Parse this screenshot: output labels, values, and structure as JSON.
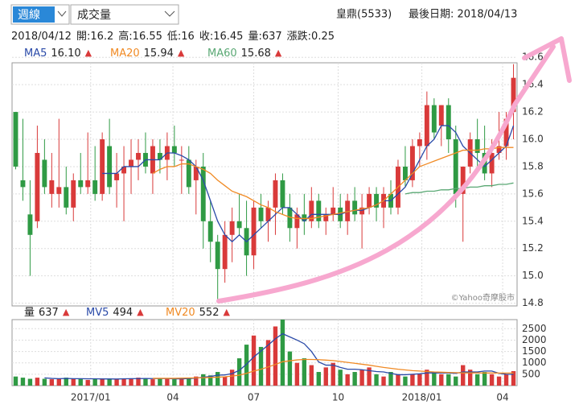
{
  "toolbar": {
    "period": "週線",
    "indicator": "成交量"
  },
  "header": {
    "stock": "皇鼎(5533)",
    "last_date": "最後日期: 2018/04/13"
  },
  "quote": {
    "date": "2018/04/12",
    "items": [
      {
        "label": "開:",
        "value": 16.2
      },
      {
        "label": "高:",
        "value": 16.55
      },
      {
        "label": "低:",
        "value": 16
      },
      {
        "label": "收:",
        "value": 16.45
      },
      {
        "label": "量:",
        "value": 637
      },
      {
        "label": "漲跌:",
        "value": 0.25
      }
    ]
  },
  "watermark": "©Yahoo奇摩股市",
  "chart_data": [
    {
      "type": "candlestick",
      "up_color": "#d93a3a",
      "down_color": "#2f9a44",
      "grid": true,
      "xlim": [
        -0.5,
        69.5
      ],
      "ylim": [
        14.78,
        16.56
      ],
      "yticks": [
        14.8,
        {
          "value": 15.0,
          "label": "15.0"
        },
        15.2,
        15.4,
        15.6,
        15.8,
        {
          "value": 16.0,
          "label": "16.0"
        },
        16.2,
        16.4,
        16.6
      ],
      "ohlc": [
        [
          16.2,
          16.2,
          15.78,
          15.8
        ],
        [
          15.7,
          16.15,
          15.55,
          15.65
        ],
        [
          15.45,
          15.7,
          15.0,
          15.3
        ],
        [
          15.4,
          16.1,
          15.35,
          15.9
        ],
        [
          15.85,
          16.0,
          15.6,
          15.65
        ],
        [
          15.6,
          15.9,
          15.5,
          15.7
        ],
        [
          15.6,
          16.15,
          15.5,
          15.65
        ],
        [
          15.65,
          15.8,
          15.45,
          15.5
        ],
        [
          15.5,
          15.75,
          15.4,
          15.7
        ],
        [
          15.7,
          15.9,
          15.6,
          15.65
        ],
        [
          15.65,
          16.05,
          15.6,
          15.7
        ],
        [
          15.7,
          15.95,
          15.55,
          15.6
        ],
        [
          15.6,
          16.05,
          15.55,
          16.0
        ],
        [
          15.95,
          16.15,
          15.6,
          15.65
        ],
        [
          15.7,
          15.9,
          15.5,
          15.75
        ],
        [
          15.75,
          15.95,
          15.4,
          15.8
        ],
        [
          15.8,
          16.0,
          15.6,
          15.85
        ],
        [
          15.85,
          16.0,
          15.7,
          15.9
        ],
        [
          15.9,
          16.05,
          15.75,
          15.8
        ],
        [
          15.75,
          16.0,
          15.6,
          15.95
        ],
        [
          15.9,
          16.0,
          15.75,
          15.85
        ],
        [
          15.85,
          16.05,
          15.7,
          15.95
        ],
        [
          15.95,
          16.1,
          15.8,
          15.9
        ],
        [
          15.85,
          15.95,
          15.6,
          15.85
        ],
        [
          15.85,
          15.95,
          15.6,
          15.65
        ],
        [
          15.7,
          15.85,
          15.45,
          15.8
        ],
        [
          15.8,
          15.9,
          15.2,
          15.4
        ],
        [
          15.4,
          15.55,
          15.1,
          15.25
        ],
        [
          15.25,
          15.3,
          14.82,
          15.05
        ],
        [
          15.05,
          15.4,
          14.95,
          15.3
        ],
        [
          15.3,
          15.5,
          15.1,
          15.4
        ],
        [
          15.4,
          15.6,
          15.3,
          15.35
        ],
        [
          15.35,
          15.55,
          15.0,
          15.15
        ],
        [
          15.15,
          15.55,
          15.05,
          15.5
        ],
        [
          15.5,
          15.6,
          15.35,
          15.4
        ],
        [
          15.4,
          15.55,
          15.25,
          15.5
        ],
        [
          15.5,
          15.75,
          15.3,
          15.7
        ],
        [
          15.7,
          15.75,
          15.45,
          15.5
        ],
        [
          15.5,
          15.6,
          15.25,
          15.35
        ],
        [
          15.35,
          15.5,
          15.2,
          15.45
        ],
        [
          15.45,
          15.6,
          15.3,
          15.4
        ],
        [
          15.4,
          15.65,
          15.35,
          15.55
        ],
        [
          15.55,
          15.6,
          15.35,
          15.4
        ],
        [
          15.4,
          15.5,
          15.3,
          15.45
        ],
        [
          15.45,
          15.65,
          15.4,
          15.5
        ],
        [
          15.5,
          15.6,
          15.35,
          15.4
        ],
        [
          15.4,
          15.6,
          15.3,
          15.55
        ],
        [
          15.55,
          15.65,
          15.4,
          15.45
        ],
        [
          15.45,
          15.6,
          15.2,
          15.5
        ],
        [
          15.5,
          15.65,
          15.45,
          15.6
        ],
        [
          15.6,
          15.65,
          15.4,
          15.5
        ],
        [
          15.5,
          15.65,
          15.35,
          15.6
        ],
        [
          15.6,
          15.7,
          15.45,
          15.5
        ],
        [
          15.5,
          15.85,
          15.45,
          15.8
        ],
        [
          15.8,
          15.95,
          15.65,
          15.7
        ],
        [
          15.7,
          16.0,
          15.65,
          15.95
        ],
        [
          15.95,
          16.05,
          15.8,
          16.0
        ],
        [
          15.95,
          16.35,
          15.85,
          16.25
        ],
        [
          16.25,
          16.3,
          16.0,
          16.05
        ],
        [
          16.1,
          16.25,
          15.95,
          16.25
        ],
        [
          16.25,
          16.3,
          15.9,
          16.0
        ],
        [
          16.0,
          16.1,
          15.5,
          15.6
        ],
        [
          15.6,
          15.8,
          15.25,
          15.8
        ],
        [
          15.8,
          16.05,
          15.75,
          16.0
        ],
        [
          16.0,
          16.15,
          15.8,
          15.9
        ],
        [
          15.9,
          16.1,
          15.7,
          15.75
        ],
        [
          15.75,
          16.0,
          15.65,
          15.9
        ],
        [
          15.9,
          16.2,
          15.85,
          15.95
        ],
        [
          15.95,
          16.2,
          15.85,
          16.15
        ],
        [
          16.2,
          16.55,
          16.0,
          16.45
        ]
      ],
      "series": [
        {
          "name": "MA5",
          "color": "#2a4aa8",
          "current": "16.10",
          "trend": "▲",
          "values": [
            null,
            null,
            null,
            null,
            null,
            null,
            null,
            null,
            null,
            null,
            null,
            null,
            15.75,
            15.75,
            15.75,
            15.8,
            15.8,
            15.8,
            15.85,
            15.85,
            15.85,
            15.9,
            15.9,
            15.88,
            15.85,
            15.8,
            15.7,
            15.55,
            15.4,
            15.3,
            15.25,
            15.3,
            15.25,
            15.3,
            15.35,
            15.4,
            15.45,
            15.5,
            15.5,
            15.45,
            15.4,
            15.45,
            15.45,
            15.45,
            15.45,
            15.45,
            15.47,
            15.48,
            15.48,
            15.5,
            15.52,
            15.55,
            15.55,
            15.6,
            15.65,
            15.75,
            15.85,
            15.95,
            16.0,
            16.1,
            16.1,
            16.05,
            15.95,
            15.9,
            15.85,
            15.8,
            15.85,
            15.9,
            15.95,
            16.1
          ]
        },
        {
          "name": "MA20",
          "color": "#f08a24",
          "current": "15.94",
          "trend": "▲",
          "values": [
            null,
            null,
            null,
            null,
            null,
            null,
            null,
            null,
            null,
            null,
            null,
            null,
            null,
            null,
            null,
            null,
            null,
            null,
            null,
            15.75,
            15.78,
            15.8,
            15.8,
            15.82,
            15.82,
            15.8,
            15.78,
            15.75,
            15.7,
            15.66,
            15.62,
            15.6,
            15.58,
            15.55,
            15.52,
            15.5,
            15.47,
            15.45,
            15.43,
            15.42,
            15.42,
            15.42,
            15.43,
            15.44,
            15.45,
            15.46,
            15.47,
            15.48,
            15.49,
            15.5,
            15.52,
            15.55,
            15.6,
            15.65,
            15.7,
            15.75,
            15.8,
            15.82,
            15.84,
            15.86,
            15.88,
            15.9,
            15.92,
            15.92,
            15.92,
            15.93,
            15.93,
            15.94,
            15.94,
            15.94
          ]
        },
        {
          "name": "MA60",
          "color": "#5aa874",
          "current": "15.68",
          "trend": "▲",
          "values": [
            null,
            null,
            null,
            null,
            null,
            null,
            null,
            null,
            null,
            null,
            null,
            null,
            null,
            null,
            null,
            null,
            null,
            null,
            null,
            null,
            null,
            null,
            null,
            null,
            null,
            null,
            null,
            null,
            null,
            null,
            null,
            null,
            null,
            null,
            null,
            null,
            null,
            null,
            null,
            null,
            null,
            null,
            null,
            null,
            null,
            null,
            null,
            null,
            null,
            null,
            null,
            null,
            null,
            null,
            15.6,
            15.61,
            15.61,
            15.62,
            15.62,
            15.63,
            15.63,
            15.64,
            15.64,
            15.65,
            15.65,
            15.66,
            15.66,
            15.67,
            15.67,
            15.68
          ]
        }
      ]
    },
    {
      "type": "bar",
      "name": "量",
      "current": "637",
      "trend": "▲",
      "grid": true,
      "xlim": [
        -0.5,
        69.5
      ],
      "ylim": [
        0,
        2900
      ],
      "yticks": [
        500,
        1000,
        1500,
        2000,
        2500
      ],
      "xticks": [
        {
          "value": 10.4,
          "label": "2017/01"
        },
        {
          "value": 21.8,
          "label": "04"
        },
        {
          "value": 33,
          "label": "07"
        },
        {
          "value": 44.7,
          "label": "10"
        },
        {
          "value": 56.3,
          "label": "2018/01"
        },
        {
          "value": 67.5,
          "label": "04"
        }
      ],
      "values": [
        400,
        350,
        300,
        350,
        300,
        280,
        300,
        350,
        300,
        300,
        250,
        300,
        320,
        300,
        280,
        300,
        320,
        350,
        300,
        280,
        300,
        320,
        280,
        300,
        350,
        400,
        500,
        450,
        600,
        400,
        700,
        1200,
        1800,
        2200,
        1700,
        2000,
        2600,
        2900,
        1500,
        1000,
        1200,
        900,
        600,
        800,
        1000,
        700,
        500,
        600,
        700,
        800,
        500,
        400,
        600,
        500,
        400,
        500,
        500,
        700,
        600,
        500,
        500,
        400,
        900,
        700,
        500,
        600,
        500,
        400,
        500,
        637
      ],
      "series": [
        {
          "name": "MV5",
          "color": "#2a4aa8",
          "current": "494",
          "trend": "▲",
          "values": [
            null,
            null,
            null,
            null,
            340,
            316,
            306,
            316,
            306,
            306,
            300,
            300,
            294,
            294,
            290,
            300,
            304,
            310,
            314,
            310,
            310,
            314,
            296,
            296,
            310,
            330,
            370,
            400,
            460,
            470,
            530,
            670,
            940,
            1260,
            1520,
            1780,
            2060,
            2280,
            2140,
            2000,
            1840,
            1500,
            1040,
            900,
            900,
            800,
            720,
            720,
            700,
            660,
            620,
            600,
            540,
            480,
            480,
            500,
            520,
            560,
            560,
            560,
            560,
            540,
            600,
            600,
            600,
            640,
            640,
            540,
            500,
            494
          ]
        },
        {
          "name": "MV20",
          "color": "#f08a24",
          "current": "552",
          "trend": "▲",
          "values": [
            null,
            null,
            null,
            null,
            null,
            null,
            null,
            null,
            null,
            null,
            null,
            null,
            null,
            null,
            null,
            null,
            null,
            null,
            null,
            320,
            320,
            320,
            320,
            330,
            335,
            340,
            350,
            360,
            370,
            390,
            420,
            460,
            540,
            640,
            720,
            820,
            930,
            1050,
            1090,
            1130,
            1150,
            1150,
            1140,
            1120,
            1100,
            1060,
            1020,
            980,
            940,
            900,
            850,
            800,
            760,
            720,
            690,
            660,
            640,
            620,
            600,
            590,
            580,
            570,
            560,
            560,
            560,
            555,
            555,
            552,
            552,
            552
          ]
        }
      ]
    }
  ]
}
